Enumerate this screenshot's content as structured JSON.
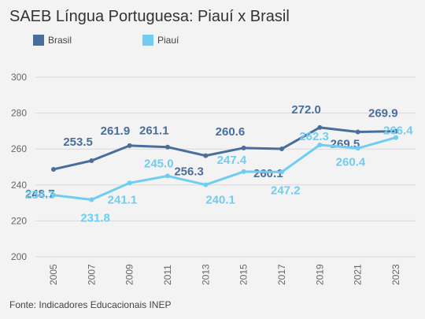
{
  "title": "SAEB Língua Portuguesa: Piauí x Brasil",
  "footer": "Fonte: Indicadores Educacionais INEP",
  "legend": [
    {
      "label": "Brasil",
      "color": "#4a6e9b"
    },
    {
      "label": "Piauí",
      "color": "#6fcdf2"
    }
  ],
  "chart_data": {
    "type": "line",
    "title": "SAEB Língua Portuguesa: Piauí x Brasil",
    "x": [
      "2005",
      "2007",
      "2009",
      "2011",
      "2013",
      "2015",
      "2017",
      "2019",
      "2021",
      "2023"
    ],
    "ylim": [
      200,
      300
    ],
    "yticks": [
      200,
      220,
      240,
      260,
      280,
      300
    ],
    "grid": true,
    "legend_position": "top-left",
    "series": [
      {
        "name": "Brasil",
        "color": "#4a6e9b",
        "values": [
          248.7,
          253.5,
          261.9,
          261.1,
          256.3,
          260.6,
          260.1,
          272.0,
          269.5,
          269.9
        ],
        "labels": [
          "248.7",
          "253.5",
          "261.9",
          "261.1",
          "256.3",
          "260.6",
          "260.1",
          "272.0",
          "269.5",
          "269.9"
        ]
      },
      {
        "name": "Piauí",
        "color": "#6fcdf2",
        "values": [
          234.3,
          231.8,
          241.1,
          245.0,
          240.1,
          247.4,
          247.2,
          262.3,
          260.4,
          266.4
        ],
        "labels": [
          "234.3",
          "231.8",
          "241.1",
          "245.0",
          "240.1",
          "247.4",
          "247.2",
          "262.3",
          "260.4",
          "266.4"
        ]
      }
    ]
  }
}
